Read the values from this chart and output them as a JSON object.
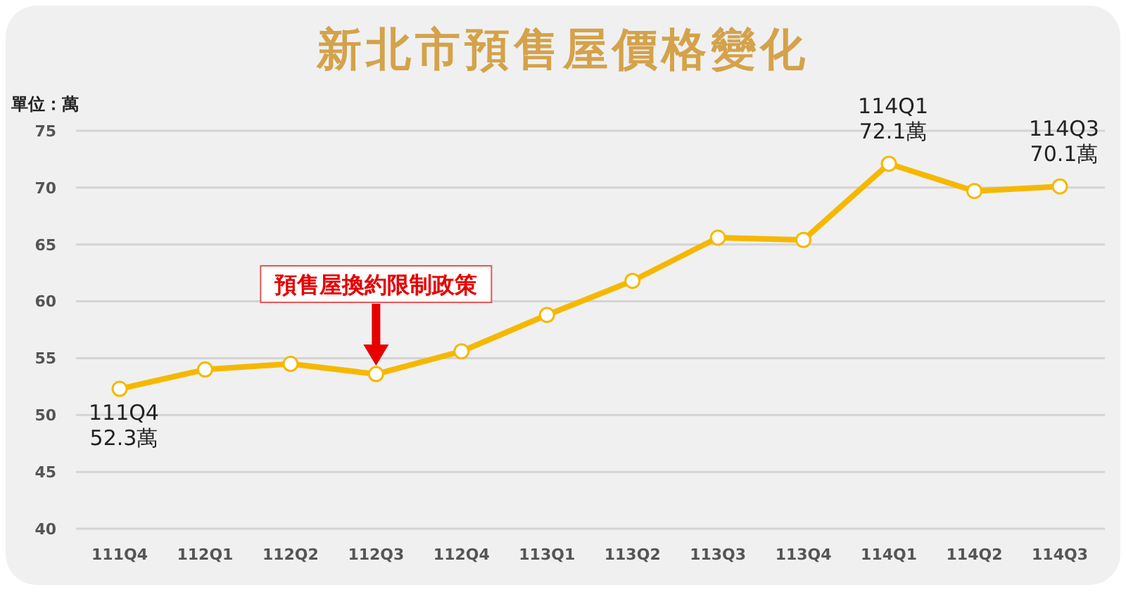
{
  "chart_data": {
    "type": "line",
    "title": "新北市預售屋價格變化",
    "ylabel": "單位：萬",
    "categories": [
      "111Q4",
      "112Q1",
      "112Q2",
      "112Q3",
      "112Q4",
      "113Q1",
      "113Q2",
      "113Q3",
      "113Q4",
      "114Q1",
      "114Q2",
      "114Q3"
    ],
    "series": [
      {
        "color": "#f5b800",
        "values": [
          52.3,
          54.0,
          54.5,
          53.6,
          55.6,
          58.8,
          61.8,
          65.6,
          65.4,
          72.1,
          69.7,
          70.1
        ]
      }
    ],
    "ylim": [
      40,
      75
    ],
    "yticks": [
      40,
      45,
      50,
      55,
      60,
      65,
      70,
      75
    ],
    "grid": "y",
    "legend": false,
    "marker": "circle",
    "line_style": "solid",
    "annotations": [
      {
        "text": "111Q4\n52.3萬",
        "x": "111Q4",
        "y": 52.3
      },
      "預售屋換約限制政策",
      {
        "text": "114Q1\n72.1萬",
        "x": "114Q1",
        "y": 72.1
      },
      {
        "text": "114Q3\n70.1萬",
        "x": "114Q3",
        "y": 70.1
      }
    ]
  }
}
